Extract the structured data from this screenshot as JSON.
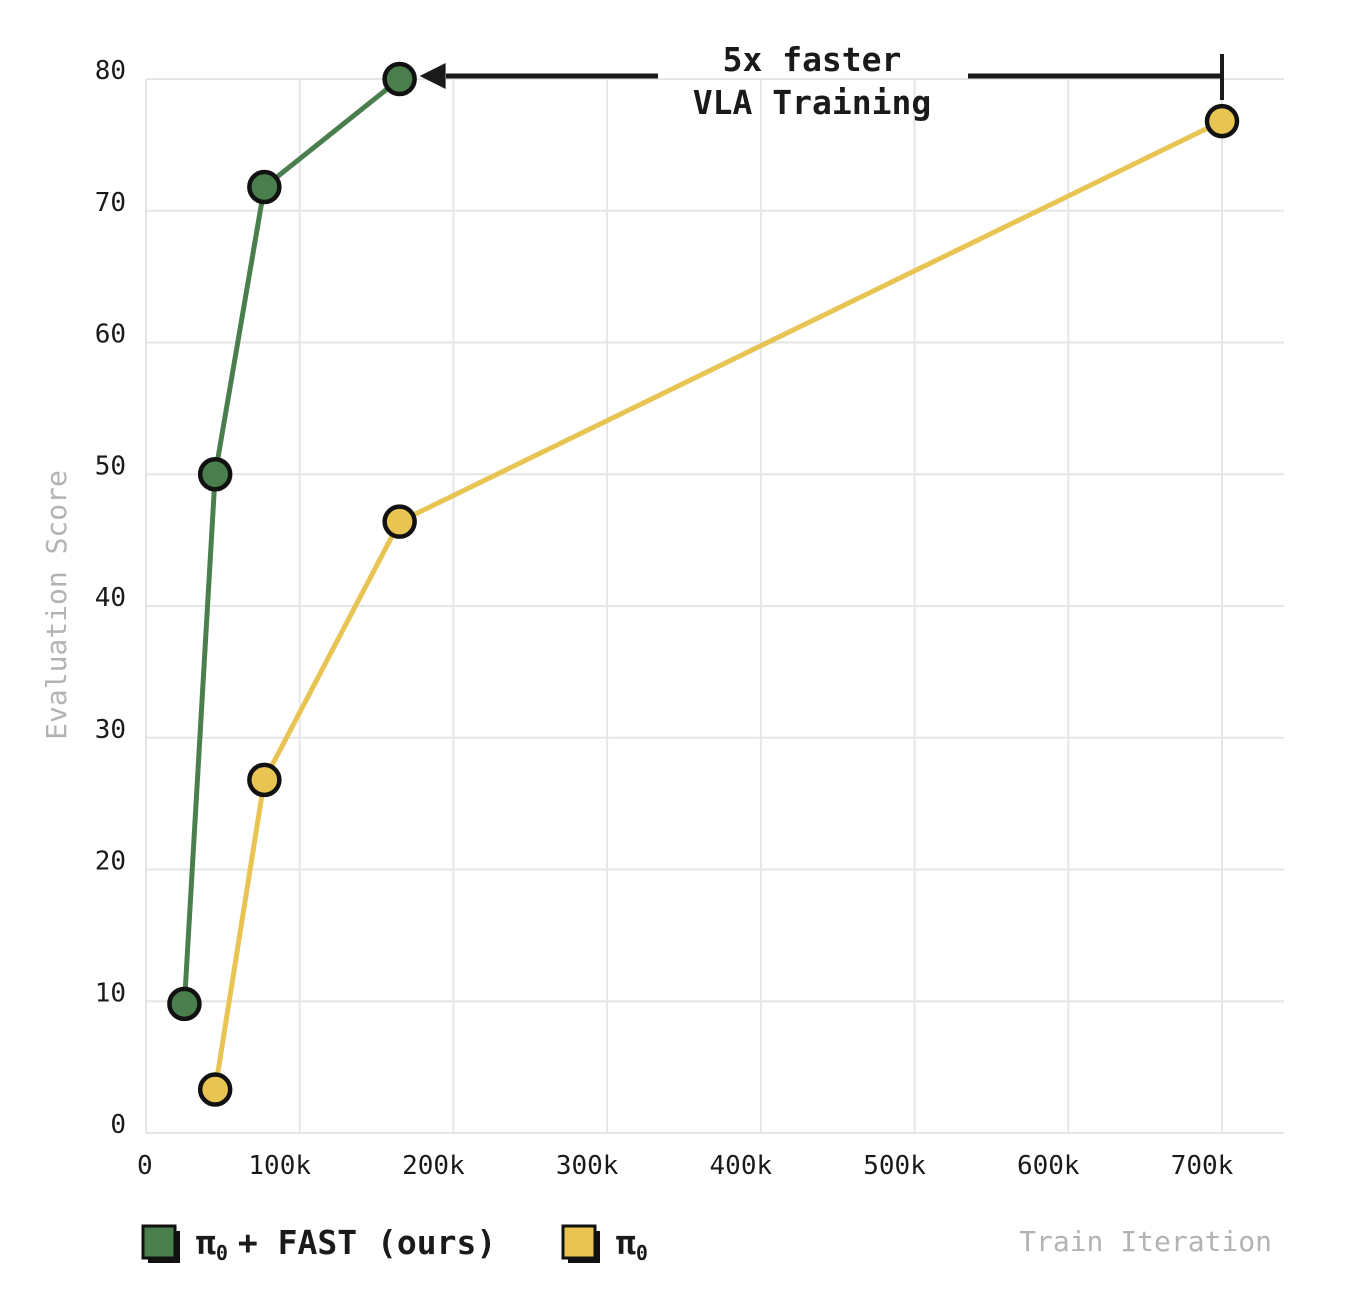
{
  "chart_data": {
    "type": "line",
    "title": "",
    "xlabel": "Train Iteration",
    "ylabel": "Evaluation Score",
    "xlim": [
      0,
      740000
    ],
    "ylim": [
      0,
      80
    ],
    "grid": true,
    "x_ticks": [
      {
        "value": 0,
        "label": "0"
      },
      {
        "value": 100000,
        "label": "100k"
      },
      {
        "value": 200000,
        "label": "200k"
      },
      {
        "value": 300000,
        "label": "300k"
      },
      {
        "value": 400000,
        "label": "400k"
      },
      {
        "value": 500000,
        "label": "500k"
      },
      {
        "value": 600000,
        "label": "600k"
      },
      {
        "value": 700000,
        "label": "700k"
      }
    ],
    "y_ticks": [
      {
        "value": 0,
        "label": "0"
      },
      {
        "value": 10,
        "label": "10"
      },
      {
        "value": 20,
        "label": "20"
      },
      {
        "value": 30,
        "label": "30"
      },
      {
        "value": 40,
        "label": "40"
      },
      {
        "value": 50,
        "label": "50"
      },
      {
        "value": 60,
        "label": "60"
      },
      {
        "value": 70,
        "label": "70"
      },
      {
        "value": 80,
        "label": "80"
      }
    ],
    "series": [
      {
        "name": "π₀ + FAST (ours)",
        "legend_main": "π",
        "legend_sub": "0",
        "legend_rest": "+ FAST (ours)",
        "color": "#4a7f4d",
        "points": [
          {
            "x": 25000,
            "y": 9.8
          },
          {
            "x": 45000,
            "y": 50
          },
          {
            "x": 77000,
            "y": 71.8
          },
          {
            "x": 165000,
            "y": 80
          }
        ]
      },
      {
        "name": "π₀",
        "legend_main": "π",
        "legend_sub": "0",
        "legend_rest": "",
        "color": "#e8c453",
        "points": [
          {
            "x": 45000,
            "y": 3.3
          },
          {
            "x": 77000,
            "y": 26.8
          },
          {
            "x": 165000,
            "y": 46.4
          },
          {
            "x": 700000,
            "y": 76.8
          }
        ]
      }
    ],
    "legend_position": "bottom-left",
    "annotation": {
      "line1": "5x faster",
      "line2": "VLA Training",
      "from_x": 700000,
      "to_x": 165000,
      "y": 80
    }
  }
}
